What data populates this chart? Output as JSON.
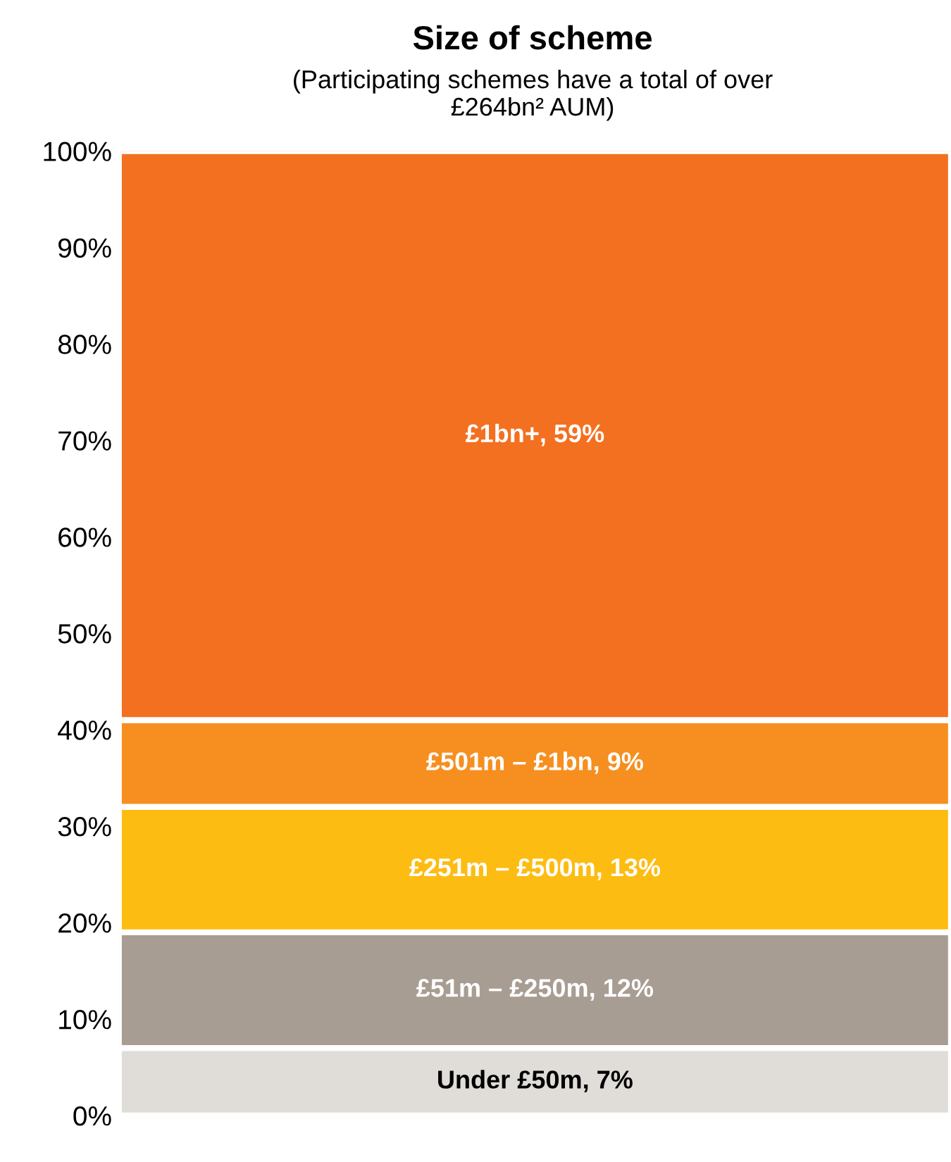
{
  "chart_data": {
    "type": "bar",
    "stacked": true,
    "title": "Size of scheme",
    "subtitle": "(Participating schemes have a total of over\n£264bn² AUM)",
    "categories": [
      null
    ],
    "series": [
      {
        "color": "#e0dcd7",
        "values": [
          7
        ],
        "value_labels": [
          "Under £50m, 7%"
        ]
      },
      {
        "color": "#a89d93",
        "values": [
          12
        ],
        "value_labels": [
          "£51m – £250m, 12%"
        ]
      },
      {
        "color": "#fdbc12",
        "values": [
          13
        ],
        "value_labels": [
          "£251m – £500m, 13%"
        ]
      },
      {
        "color": "#f68f1f",
        "values": [
          9
        ],
        "value_labels": [
          "£501m – £1bn, 9%"
        ]
      },
      {
        "color": "#f37021",
        "values": [
          59
        ],
        "value_labels": [
          "£1bn+, 59%"
        ]
      }
    ],
    "ylim": [
      0,
      100
    ],
    "yticks": [
      {
        "value": 0,
        "label": "0%"
      },
      {
        "value": 10,
        "label": "10%"
      },
      {
        "value": 20,
        "label": "20%"
      },
      {
        "value": 30,
        "label": "30%"
      },
      {
        "value": 40,
        "label": "40%"
      },
      {
        "value": 50,
        "label": "50%"
      },
      {
        "value": 60,
        "label": "60%"
      },
      {
        "value": 70,
        "label": "70%"
      },
      {
        "value": 80,
        "label": "80%"
      },
      {
        "value": 90,
        "label": "90%"
      },
      {
        "value": 100,
        "label": "100%"
      }
    ],
    "grid": false,
    "legend": false
  }
}
